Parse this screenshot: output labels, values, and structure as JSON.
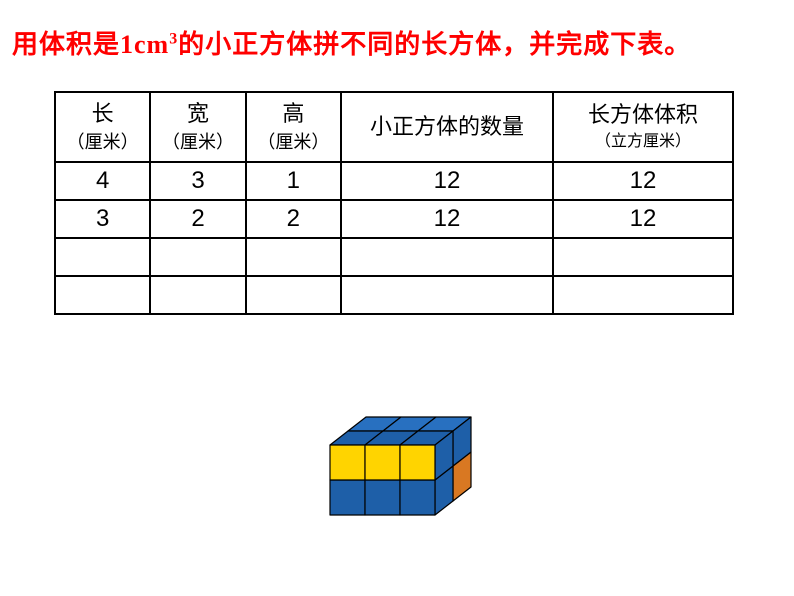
{
  "title_parts": {
    "prefix": "用体积是",
    "value": "1cm",
    "suffix": "的小正方体拼不同的长方体，并完成下表。"
  },
  "table": {
    "headers": {
      "length": {
        "label": "长",
        "unit": "（厘米）"
      },
      "width": {
        "label": "宽",
        "unit": "（厘米）"
      },
      "height": {
        "label": "高",
        "unit": "（厘米）"
      },
      "quantity": {
        "label": "小正方体的数量"
      },
      "volume": {
        "label": "长方体体积",
        "unit": "（立方厘米）"
      }
    },
    "rows": [
      {
        "length": "4",
        "width": "3",
        "height": "1",
        "quantity": "12",
        "volume": "12"
      },
      {
        "length": "3",
        "width": "2",
        "height": "2",
        "quantity": "12",
        "volume": "12"
      },
      {
        "length": "",
        "width": "",
        "height": "",
        "quantity": "",
        "volume": ""
      },
      {
        "length": "",
        "width": "",
        "height": "",
        "quantity": "",
        "volume": ""
      }
    ]
  },
  "colors": {
    "title": "#ff0000",
    "border": "#000000",
    "cube_blue": "#1e5fa8",
    "cube_yellow": "#ffd400",
    "cube_orange": "#d97822",
    "cube_side_dark": "#174a85",
    "cube_top_blue": "#2870c0",
    "background": "#ffffff"
  },
  "figure": {
    "type": "isometric-cuboid",
    "dims": {
      "length": 3,
      "width": 2,
      "height": 2
    },
    "unit_size": 35,
    "depth_dx": 18,
    "depth_dy": -14,
    "front_rows": [
      [
        "#ffd400",
        "#ffd400",
        "#ffd400"
      ],
      [
        "#1e5fa8",
        "#1e5fa8",
        "#1e5fa8"
      ]
    ],
    "side_rows": [
      [
        "#1e5fa8",
        "#1e5fa8"
      ],
      [
        "#d97822",
        "#1e5fa8"
      ]
    ],
    "top_rows": [
      [
        "#2870c0",
        "#2870c0",
        "#2870c0"
      ],
      [
        "#1e5fa8",
        "#1e5fa8",
        "#1e5fa8"
      ]
    ],
    "stroke": "#000000",
    "stroke_width": 1.2
  }
}
